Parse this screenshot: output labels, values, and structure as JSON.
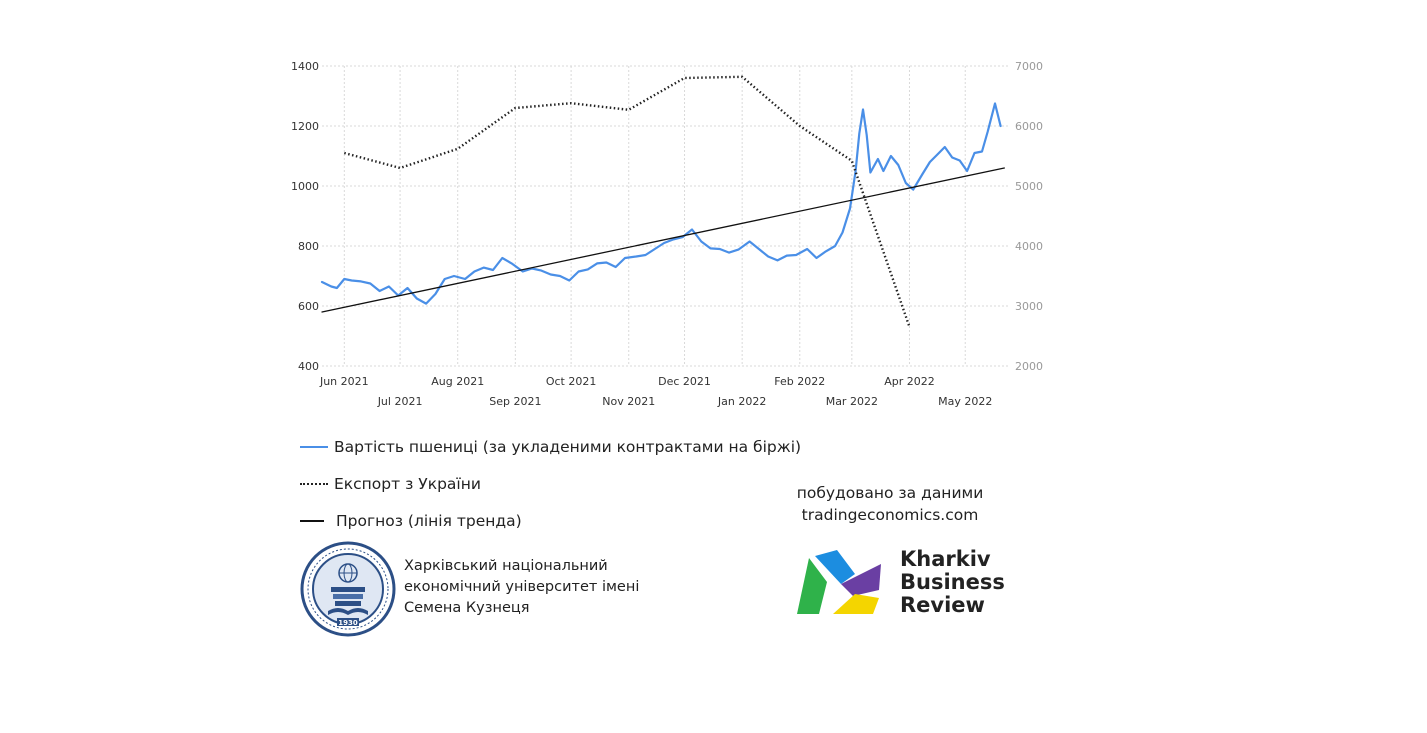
{
  "chart_data": {
    "type": "line",
    "title": "",
    "x_ticks_top": [
      "Jun 2021",
      "Aug 2021",
      "Oct 2021",
      "Dec 2021",
      "Feb 2022",
      "Apr 2022"
    ],
    "x_ticks_bottom": [
      "Jul 2021",
      "Sep 2021",
      "Nov 2021",
      "Jan 2022",
      "Mar 2022",
      "May 2022"
    ],
    "y_left": {
      "ticks": [
        400,
        600,
        800,
        1000,
        1200,
        1400
      ],
      "lim": [
        400,
        1400
      ]
    },
    "y_right": {
      "ticks": [
        2000,
        3000,
        4000,
        5000,
        6000,
        7000
      ],
      "lim": [
        2000,
        7000
      ]
    },
    "grid": true,
    "series": [
      {
        "name": "Вартість пшениці (за укладеними контрактами на біржі)",
        "axis": "left",
        "color": "#4a8fe7",
        "style": "solid",
        "points": [
          [
            "2021-05-20",
            680
          ],
          [
            "2021-05-25",
            665
          ],
          [
            "2021-05-28",
            660
          ],
          [
            "2021-06-01",
            690
          ],
          [
            "2021-06-05",
            685
          ],
          [
            "2021-06-10",
            682
          ],
          [
            "2021-06-15",
            675
          ],
          [
            "2021-06-20",
            650
          ],
          [
            "2021-06-25",
            665
          ],
          [
            "2021-06-30",
            635
          ],
          [
            "2021-07-05",
            660
          ],
          [
            "2021-07-10",
            625
          ],
          [
            "2021-07-15",
            608
          ],
          [
            "2021-07-20",
            640
          ],
          [
            "2021-07-25",
            690
          ],
          [
            "2021-07-30",
            700
          ],
          [
            "2021-08-05",
            690
          ],
          [
            "2021-08-10",
            715
          ],
          [
            "2021-08-15",
            728
          ],
          [
            "2021-08-20",
            720
          ],
          [
            "2021-08-25",
            760
          ],
          [
            "2021-08-30",
            742
          ],
          [
            "2021-09-05",
            715
          ],
          [
            "2021-09-10",
            725
          ],
          [
            "2021-09-15",
            718
          ],
          [
            "2021-09-20",
            705
          ],
          [
            "2021-09-25",
            700
          ],
          [
            "2021-09-30",
            685
          ],
          [
            "2021-10-05",
            715
          ],
          [
            "2021-10-10",
            722
          ],
          [
            "2021-10-15",
            742
          ],
          [
            "2021-10-20",
            745
          ],
          [
            "2021-10-25",
            730
          ],
          [
            "2021-10-30",
            760
          ],
          [
            "2021-11-05",
            765
          ],
          [
            "2021-11-10",
            770
          ],
          [
            "2021-11-15",
            790
          ],
          [
            "2021-11-20",
            810
          ],
          [
            "2021-11-25",
            822
          ],
          [
            "2021-11-30",
            830
          ],
          [
            "2021-12-05",
            855
          ],
          [
            "2021-12-10",
            815
          ],
          [
            "2021-12-15",
            792
          ],
          [
            "2021-12-20",
            790
          ],
          [
            "2021-12-25",
            778
          ],
          [
            "2021-12-30",
            788
          ],
          [
            "2022-01-05",
            815
          ],
          [
            "2022-01-10",
            790
          ],
          [
            "2022-01-15",
            765
          ],
          [
            "2022-01-20",
            752
          ],
          [
            "2022-01-25",
            768
          ],
          [
            "2022-01-30",
            770
          ],
          [
            "2022-02-05",
            790
          ],
          [
            "2022-02-10",
            760
          ],
          [
            "2022-02-15",
            782
          ],
          [
            "2022-02-20",
            800
          ],
          [
            "2022-02-24",
            845
          ],
          [
            "2022-02-28",
            925
          ],
          [
            "2022-03-03",
            1050
          ],
          [
            "2022-03-05",
            1175
          ],
          [
            "2022-03-07",
            1255
          ],
          [
            "2022-03-09",
            1170
          ],
          [
            "2022-03-11",
            1045
          ],
          [
            "2022-03-15",
            1090
          ],
          [
            "2022-03-18",
            1050
          ],
          [
            "2022-03-22",
            1100
          ],
          [
            "2022-03-26",
            1070
          ],
          [
            "2022-03-30",
            1010
          ],
          [
            "2022-04-03",
            988
          ],
          [
            "2022-04-08",
            1040
          ],
          [
            "2022-04-12",
            1080
          ],
          [
            "2022-04-16",
            1105
          ],
          [
            "2022-04-20",
            1130
          ],
          [
            "2022-04-24",
            1095
          ],
          [
            "2022-04-28",
            1085
          ],
          [
            "2022-05-02",
            1050
          ],
          [
            "2022-05-06",
            1110
          ],
          [
            "2022-05-10",
            1115
          ],
          [
            "2022-05-13",
            1180
          ],
          [
            "2022-05-17",
            1275
          ],
          [
            "2022-05-20",
            1200
          ]
        ]
      },
      {
        "name": "Експорт з України",
        "axis": "right",
        "color": "#222222",
        "style": "dotted",
        "points": [
          [
            "2021-06-01",
            5550
          ],
          [
            "2021-07-01",
            5300
          ],
          [
            "2021-08-01",
            5620
          ],
          [
            "2021-09-01",
            6300
          ],
          [
            "2021-10-01",
            6380
          ],
          [
            "2021-11-01",
            6270
          ],
          [
            "2021-12-01",
            6800
          ],
          [
            "2022-01-01",
            6820
          ],
          [
            "2022-02-01",
            6000
          ],
          [
            "2022-03-01",
            5420
          ],
          [
            "2022-04-01",
            2650
          ]
        ]
      },
      {
        "name": "Прогноз (лінія тренда)",
        "axis": "left",
        "color": "#111111",
        "style": "solid",
        "points": [
          [
            "2021-05-20",
            580
          ],
          [
            "2022-05-22",
            1060
          ]
        ]
      }
    ]
  },
  "source_note": [
    "побудовано за даними",
    "tradingeconomics.com"
  ],
  "university": [
    "Харківський національний",
    "економічний університет імені",
    "Семена Кузнеця"
  ],
  "brand": [
    "Kharkiv",
    "Business",
    "Review"
  ],
  "seal_text": "1930"
}
